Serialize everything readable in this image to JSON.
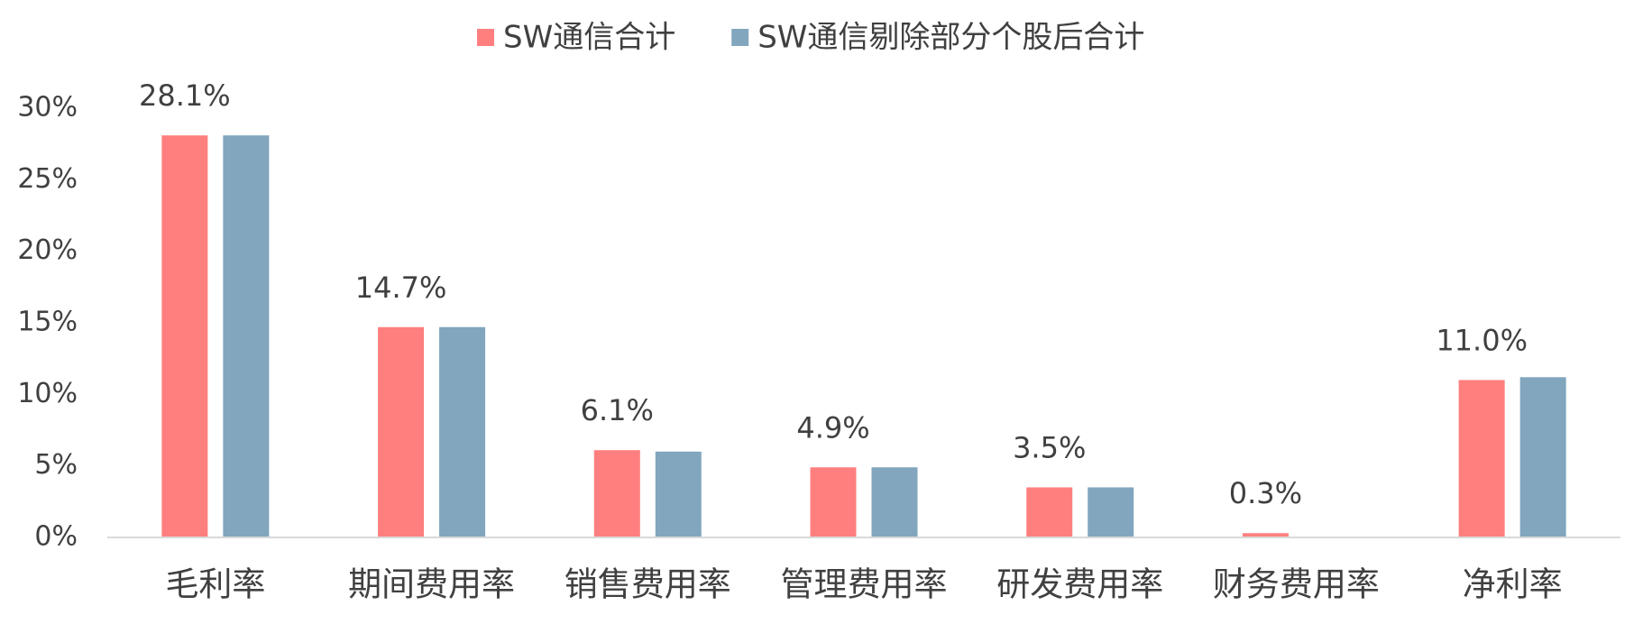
{
  "chart_data": {
    "type": "bar",
    "categories": [
      "毛利率",
      "期间费用率",
      "销售费用率",
      "管理费用率",
      "研发费用率",
      "财务费用率",
      "净利率"
    ],
    "series": [
      {
        "name": "SW通信合计",
        "color": "#ff7f7f",
        "values": [
          28.1,
          14.7,
          6.1,
          4.9,
          3.5,
          0.3,
          11.0
        ],
        "value_labels": [
          "28.1%",
          "14.7%",
          "6.1%",
          "4.9%",
          "3.5%",
          "0.3%",
          "11.0%"
        ]
      },
      {
        "name": "SW通信剔除部分个股后合计",
        "color": "#81a6be",
        "values": [
          28.1,
          14.7,
          6.0,
          4.9,
          3.5,
          0.0,
          11.2
        ]
      }
    ],
    "ylim": [
      0,
      30
    ],
    "yticks": [
      {
        "value": 0,
        "label": "0%"
      },
      {
        "value": 5,
        "label": "5%"
      },
      {
        "value": 10,
        "label": "10%"
      },
      {
        "value": 15,
        "label": "15%"
      },
      {
        "value": 20,
        "label": "20%"
      },
      {
        "value": 25,
        "label": "25%"
      },
      {
        "value": 30,
        "label": "30%"
      }
    ],
    "legend": "top",
    "grid": false
  }
}
